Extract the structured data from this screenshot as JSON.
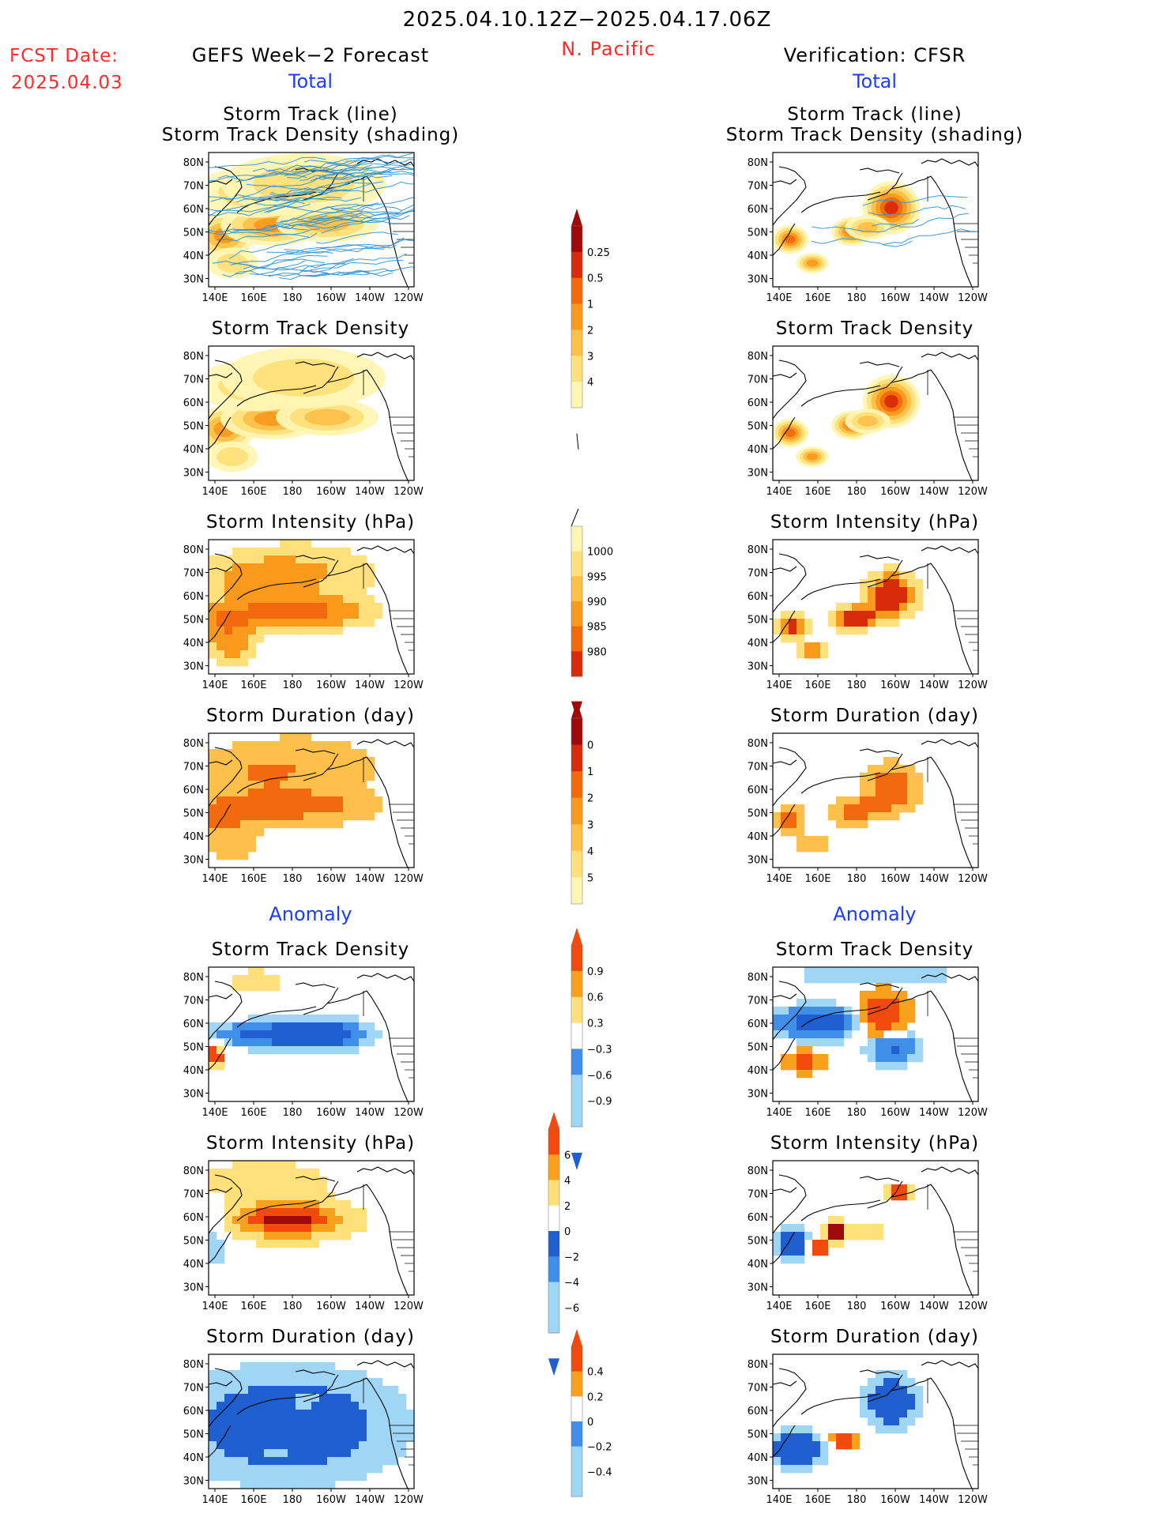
{
  "header": {
    "date_range": "2025.04.10.12Z−2025.04.17.06Z",
    "fcst_label": "FCST Date:",
    "fcst_date": "2025.04.03",
    "left_title": "GEFS Week−2 Forecast",
    "region": "N. Pacific",
    "right_title": "Verification: CFSR",
    "total_label": "Total",
    "anomaly_label": "Anomaly"
  },
  "panel_titles": {
    "track_line": "Storm Track (line)",
    "track_shading": "Storm Track Density (shading)",
    "density": "Storm Track Density",
    "intensity": "Storm Intensity (hPa)",
    "duration": "Storm Duration (day)"
  },
  "axes": {
    "lon_ticks": [
      "140E",
      "160E",
      "180",
      "160W",
      "140W",
      "120W"
    ],
    "lat_ticks": [
      "80N",
      "70N",
      "60N",
      "50N",
      "40N",
      "30N"
    ]
  },
  "colorbars": {
    "density_total": [
      "0.25",
      "0.5",
      "1",
      "2",
      "3",
      "4"
    ],
    "intensity_total": [
      "1000",
      "995",
      "990",
      "985",
      "980"
    ],
    "duration_total": [
      "0",
      "1",
      "2",
      "3",
      "4",
      "5"
    ],
    "density_anom": [
      "0.9",
      "0.6",
      "0.3",
      "−0.3",
      "−0.6",
      "−0.9"
    ],
    "intensity_anom": [
      "6",
      "4",
      "2",
      "0",
      "−2",
      "−4",
      "−6"
    ],
    "duration_anom": [
      "0.4",
      "0.2",
      "0",
      "−0.2",
      "−0.4"
    ]
  },
  "palettes": {
    "total_warm": [
      "#fff5b4",
      "#ffe07a",
      "#fdc04a",
      "#f99a1c",
      "#f26a0d",
      "#d92a0a",
      "#9e0a0a"
    ],
    "anom_div": [
      "#1f5fcf",
      "#3f8fe8",
      "#9fd6f5",
      "#ffffff",
      "#ffe07a",
      "#f9a01c",
      "#f24a0d",
      "#9e0a0a"
    ],
    "track_line": "#2a8fd6"
  }
}
